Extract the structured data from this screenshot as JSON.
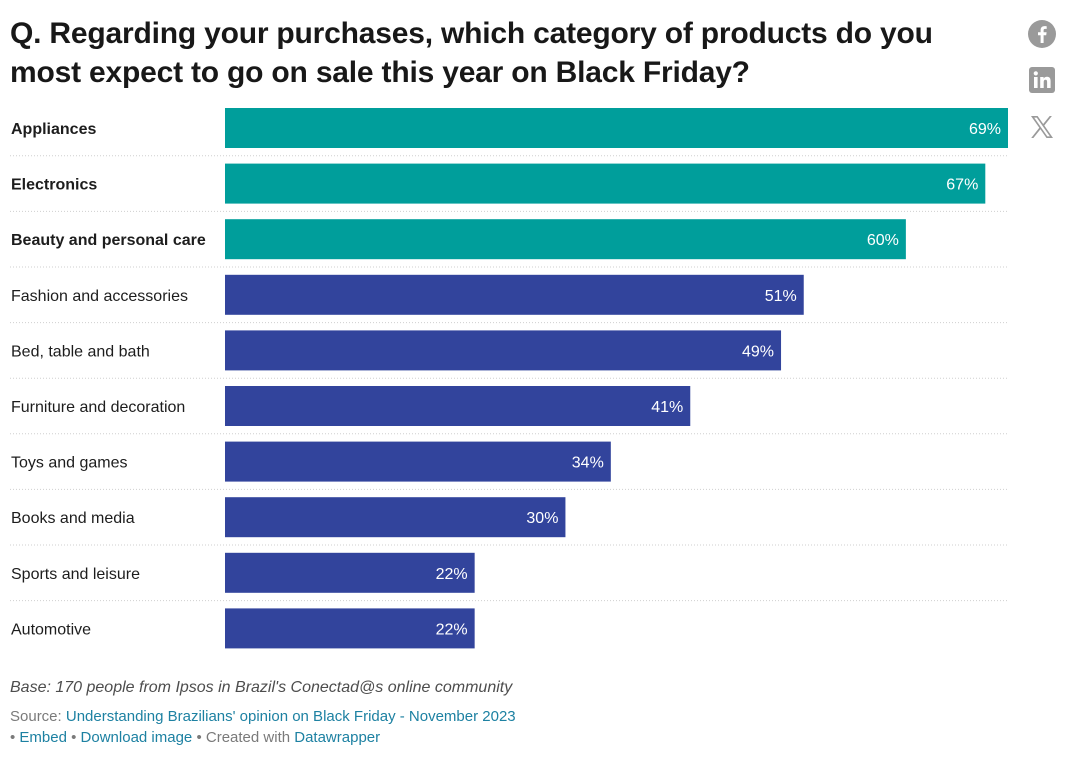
{
  "title": "Q. Regarding your purchases, which category of products do you most expect to go on sale this year on Black Friday?",
  "share": {
    "facebook_icon": "facebook-icon",
    "linkedin_icon": "linkedin-icon",
    "x_icon": "x-icon"
  },
  "colors": {
    "highlight": "#009e9b",
    "default": "#32449c",
    "gridline": "#cfcfcf",
    "link": "#1d81a2"
  },
  "chart_data": {
    "type": "bar",
    "orientation": "horizontal",
    "title": "Q. Regarding your purchases, which category of products do you most expect to go on sale this year on Black Friday?",
    "xlabel": "",
    "ylabel": "",
    "xlim": [
      0,
      69
    ],
    "value_suffix": "%",
    "categories": [
      "Appliances",
      "Electronics",
      "Beauty and personal care",
      "Fashion and accessories",
      "Bed, table and bath",
      "Furniture and decoration",
      "Toys and games",
      "Books and media",
      "Sports and leisure",
      "Automotive"
    ],
    "values": [
      69,
      67,
      60,
      51,
      49,
      41,
      34,
      30,
      22,
      22
    ],
    "value_labels": [
      "69%",
      "67%",
      "60%",
      "51%",
      "49%",
      "41%",
      "34%",
      "30%",
      "22%",
      "22%"
    ],
    "highlighted": [
      true,
      true,
      true,
      false,
      false,
      false,
      false,
      false,
      false,
      false
    ]
  },
  "notes": "Base: 170 people from Ipsos in Brazil's Conectad@s online community",
  "footer": {
    "source_prefix": "Source: ",
    "source_link": "Understanding Brazilians' opinion on Black Friday - November 2023",
    "sep1": " • ",
    "embed": "Embed",
    "sep2": " • ",
    "download": "Download image",
    "sep3": " • Created with ",
    "datawrapper": "Datawrapper"
  }
}
